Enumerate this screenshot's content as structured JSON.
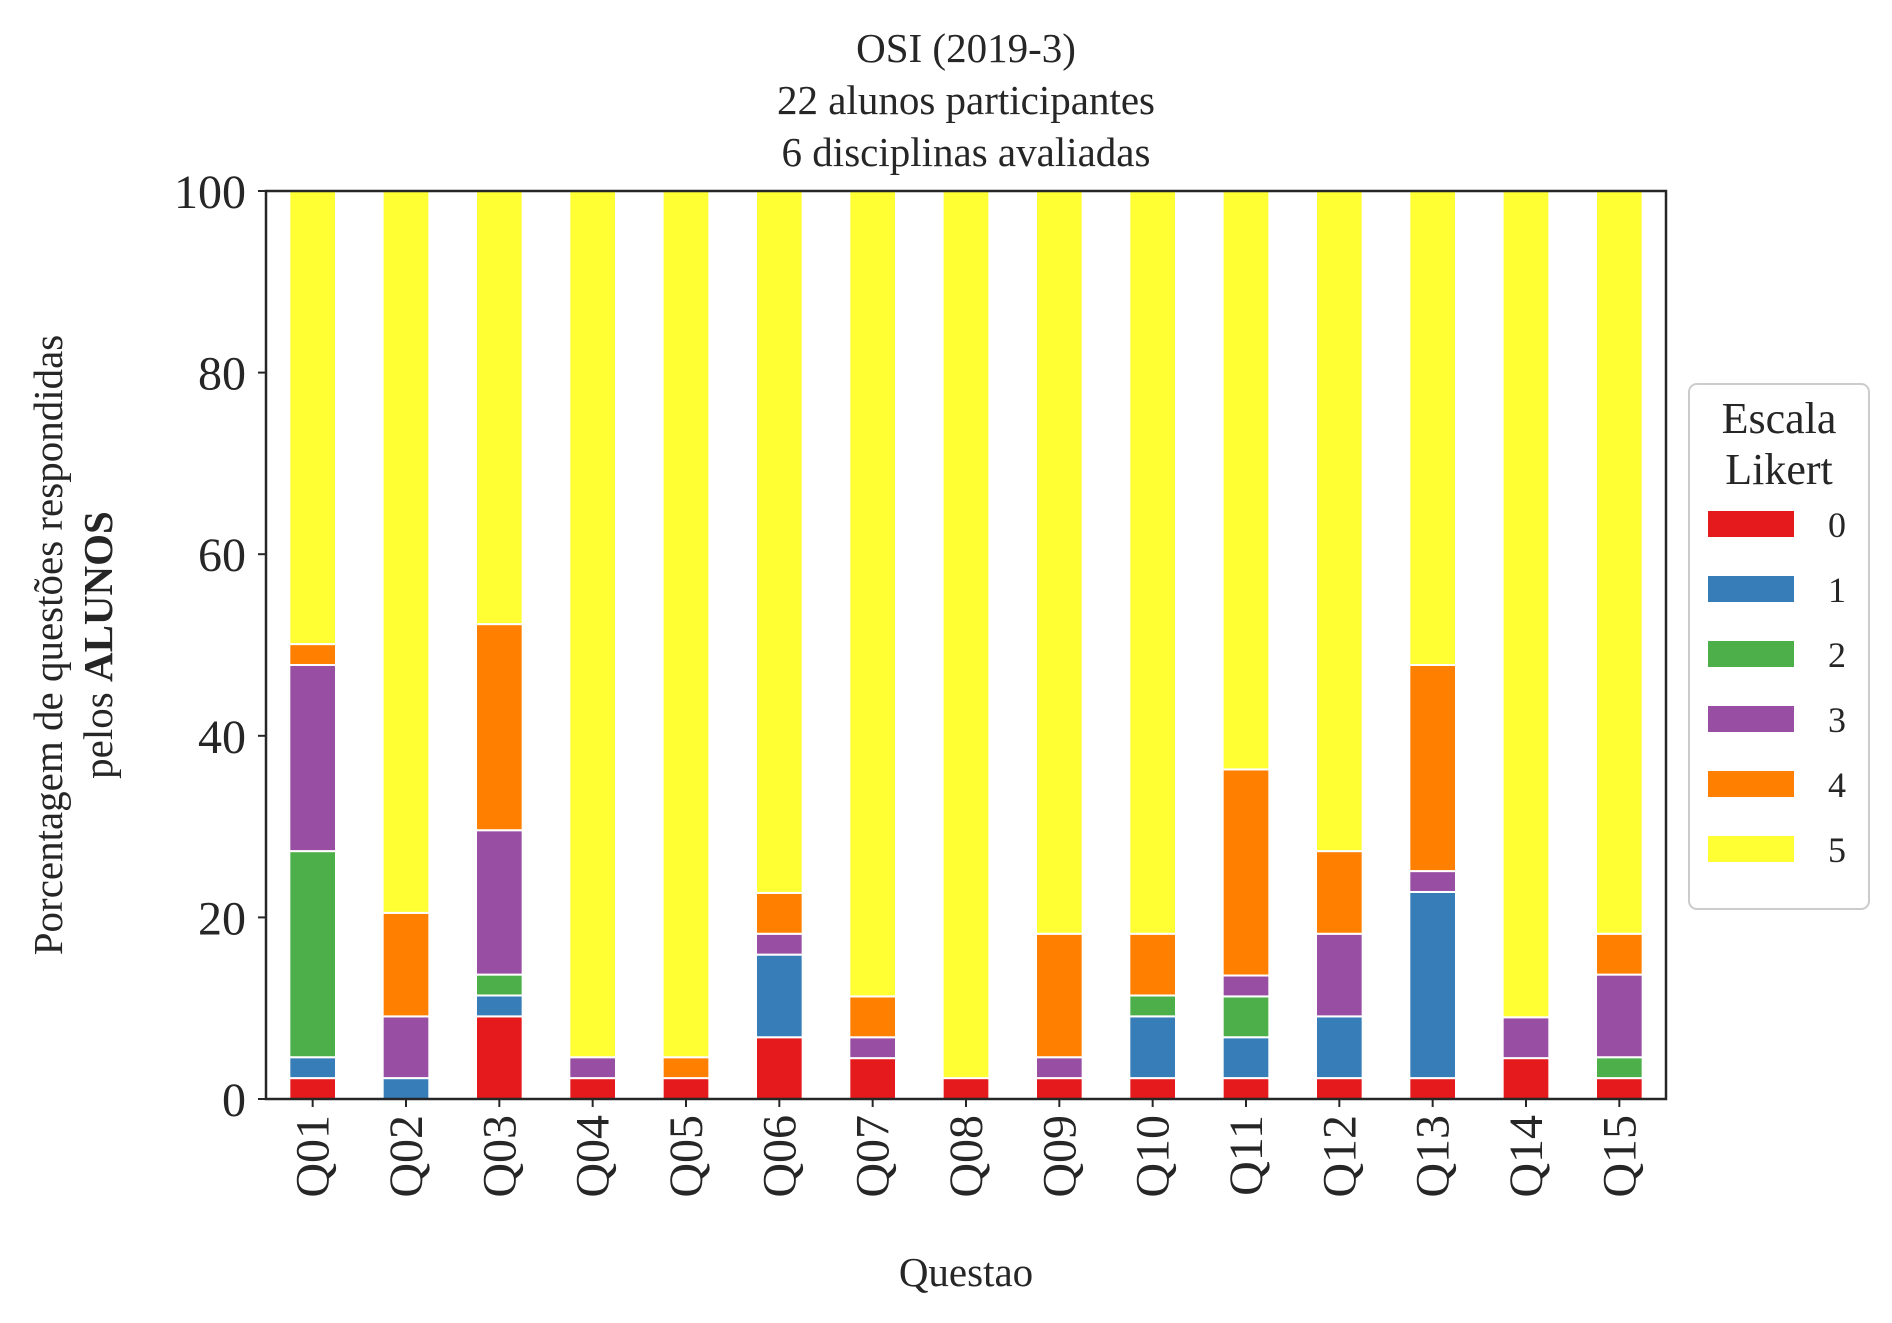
{
  "chart_data": {
    "type": "bar",
    "stacked": true,
    "title_lines": [
      "OSI (2019-3)",
      "22 alunos participantes",
      "6 disciplinas avaliadas"
    ],
    "xlabel": "Questao",
    "ylabel_line1": "Porcentagem de questões respondidas",
    "ylabel_line2_prefix": "pelos ",
    "ylabel_line2_bold": "ALUNOS",
    "ylim": [
      0,
      100
    ],
    "yticks": [
      "0",
      "20",
      "40",
      "60",
      "80",
      "100"
    ],
    "grid": false,
    "legend": {
      "title_lines": [
        "Escala",
        "Likert"
      ],
      "placement": "right-center",
      "entries": [
        "0",
        "1",
        "2",
        "3",
        "4",
        "5"
      ]
    },
    "categories": [
      "Q01",
      "Q02",
      "Q03",
      "Q04",
      "Q05",
      "Q06",
      "Q07",
      "Q08",
      "Q09",
      "Q10",
      "Q11",
      "Q12",
      "Q13",
      "Q14",
      "Q15"
    ],
    "series": [
      {
        "name": "0",
        "color": "#e41a1c",
        "values": [
          2.3,
          0,
          9.1,
          2.3,
          2.3,
          6.8,
          4.5,
          2.3,
          2.3,
          2.3,
          2.3,
          2.3,
          2.3,
          4.5,
          2.3
        ]
      },
      {
        "name": "1",
        "color": "#377eb8",
        "values": [
          2.3,
          2.3,
          2.3,
          0,
          0,
          9.1,
          0,
          0,
          0,
          6.8,
          4.5,
          6.8,
          20.5,
          0,
          0
        ]
      },
      {
        "name": "2",
        "color": "#4daf4a",
        "values": [
          22.7,
          0,
          2.3,
          0,
          0,
          0,
          0,
          0,
          0,
          2.3,
          4.5,
          0,
          0,
          0,
          2.3
        ]
      },
      {
        "name": "3",
        "color": "#984ea3",
        "values": [
          20.5,
          6.8,
          15.9,
          2.3,
          0,
          2.3,
          2.3,
          0,
          2.3,
          0,
          2.3,
          9.1,
          2.3,
          4.5,
          9.1
        ]
      },
      {
        "name": "4",
        "color": "#ff7f00",
        "values": [
          2.3,
          11.4,
          22.7,
          0,
          2.3,
          4.5,
          4.5,
          0,
          13.6,
          6.8,
          22.7,
          9.1,
          22.7,
          0,
          4.5
        ]
      },
      {
        "name": "5",
        "color": "#ffff33",
        "values": [
          49.9,
          79.5,
          47.7,
          95.4,
          95.4,
          77.3,
          88.7,
          97.7,
          81.8,
          81.8,
          63.7,
          72.7,
          52.2,
          91.0,
          81.8
        ]
      }
    ]
  }
}
